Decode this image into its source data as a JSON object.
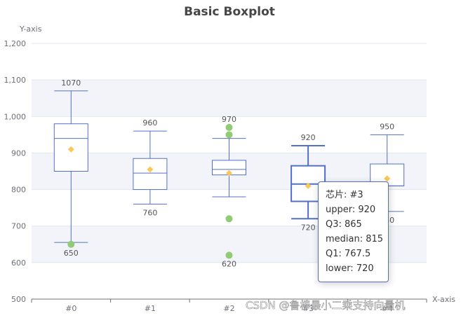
{
  "chart_data": {
    "type": "boxplot",
    "title": "Basic Boxplot",
    "xlabel": "X-axis",
    "ylabel": "Y-axis",
    "ylim": [
      500,
      1200
    ],
    "yticks": [
      "500",
      "600",
      "700",
      "800",
      "900",
      "1,000",
      "1,100",
      "1,200"
    ],
    "categories": [
      "#0",
      "#1",
      "#2",
      "#3",
      "#4"
    ],
    "boxes": [
      {
        "category": "#0",
        "lower": 655,
        "q1": 850,
        "median": 940,
        "q3": 980,
        "upper": 1070,
        "mean": 910
      },
      {
        "category": "#1",
        "lower": 760,
        "q1": 800,
        "median": 845,
        "q3": 885,
        "upper": 960,
        "mean": 855
      },
      {
        "category": "#2",
        "lower": 780,
        "q1": 840,
        "median": 855,
        "q3": 880,
        "upper": 940,
        "mean": 845
      },
      {
        "category": "#3",
        "lower": 720,
        "q1": 767.5,
        "median": 815,
        "q3": 865,
        "upper": 920,
        "mean": 810
      },
      {
        "category": "#4",
        "lower": 740,
        "q1": 810,
        "median": 810,
        "q3": 870,
        "upper": 950,
        "mean": 830
      }
    ],
    "outliers": [
      {
        "category": "#0",
        "value": 650
      },
      {
        "category": "#2",
        "value": 970
      },
      {
        "category": "#2",
        "value": 950
      },
      {
        "category": "#2",
        "value": 720
      },
      {
        "category": "#2",
        "value": 620
      }
    ],
    "value_labels": [
      {
        "category": "#0",
        "value": 1070,
        "text": "1070"
      },
      {
        "category": "#0",
        "value": 650,
        "text": "650"
      },
      {
        "category": "#1",
        "value": 960,
        "text": "960"
      },
      {
        "category": "#1",
        "value": 760,
        "text": "760"
      },
      {
        "category": "#2",
        "value": 970,
        "text": "970"
      },
      {
        "category": "#2",
        "value": 620,
        "text": "620"
      },
      {
        "category": "#3",
        "value": 920,
        "text": "920"
      },
      {
        "category": "#3",
        "value": 720,
        "text": "720"
      },
      {
        "category": "#4",
        "value": 950,
        "text": "950"
      },
      {
        "category": "#4",
        "value": 740,
        "text": "740"
      }
    ],
    "highlighted_category": "#3",
    "colors": {
      "box": "#5470c6",
      "outlier": "#91cc75",
      "mean": "#fac858",
      "band": "#f3f4f9",
      "grid": "#e0e6f1",
      "axis": "#6e7079"
    },
    "grid": true
  },
  "tooltip": {
    "lines": [
      "芯片: #3",
      "upper: 920",
      "Q3: 865",
      "median: 815",
      "Q1: 767.5",
      "lower: 720"
    ]
  },
  "watermark": "CSDN @鲁棒最小二乘支持向量机"
}
